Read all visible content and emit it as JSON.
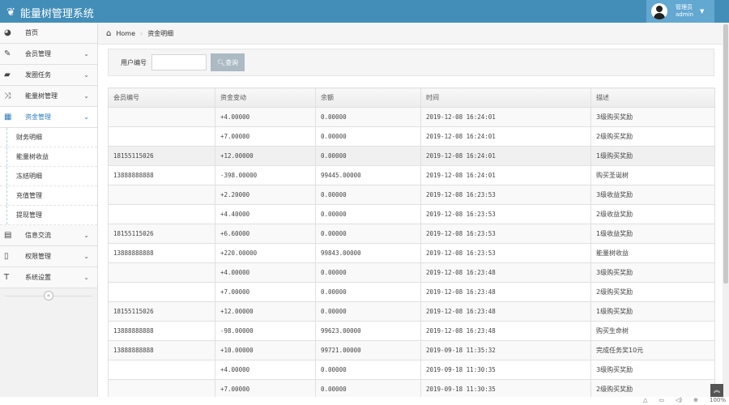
{
  "app": {
    "title": "能量树管理系统",
    "brand_color": "#438eb9"
  },
  "user": {
    "role": "管理员",
    "name": "admin"
  },
  "sidebar": {
    "items": [
      {
        "label": "首页",
        "icon": "dashboard-icon"
      },
      {
        "label": "会员管理",
        "icon": "edit-icon"
      },
      {
        "label": "发圈任务",
        "icon": "book-icon"
      },
      {
        "label": "能量树管理",
        "icon": "shuffle-icon"
      },
      {
        "label": "资金管理",
        "icon": "calendar-icon",
        "active": true
      }
    ],
    "subitems": [
      "财务明细",
      "能量树收益",
      "冻结明细",
      "充值管理",
      "提现管理"
    ],
    "items2": [
      {
        "label": "信息交流",
        "icon": "list-icon"
      },
      {
        "label": "权限管理",
        "icon": "file-icon"
      },
      {
        "label": "系统设置",
        "icon": "text-icon"
      }
    ]
  },
  "breadcrumb": {
    "home": "Home",
    "current": "资金明细"
  },
  "search": {
    "label": "用户编号",
    "value": "",
    "button": "查询"
  },
  "table": {
    "headers": [
      "会员编号",
      "资金变动",
      "余额",
      "时间",
      "描述"
    ],
    "rows": [
      [
        "",
        "+4.00000",
        "0.00000",
        "2019-12-08 16:24:01",
        "3级购买奖励"
      ],
      [
        "",
        "+7.00000",
        "0.00000",
        "2019-12-08 16:24:01",
        "2级购买奖励"
      ],
      [
        "18155115026",
        "+12.00000",
        "0.00000",
        "2019-12-08 16:24:01",
        "1级购买奖励"
      ],
      [
        "13888888888",
        "-398.00000",
        "99445.00000",
        "2019-12-08 16:24:01",
        "购买圣诞树"
      ],
      [
        "",
        "+2.20000",
        "0.00000",
        "2019-12-08 16:23:53",
        "3级收益奖励"
      ],
      [
        "",
        "+4.40000",
        "0.00000",
        "2019-12-08 16:23:53",
        "2级收益奖励"
      ],
      [
        "18155115026",
        "+6.60000",
        "0.00000",
        "2019-12-08 16:23:53",
        "1级收益奖励"
      ],
      [
        "13888888888",
        "+220.00000",
        "99843.00000",
        "2019-12-08 16:23:53",
        "能量树收益"
      ],
      [
        "",
        "+4.00000",
        "0.00000",
        "2019-12-08 16:23:48",
        "3级购买奖励"
      ],
      [
        "",
        "+7.00000",
        "0.00000",
        "2019-12-08 16:23:48",
        "2级购买奖励"
      ],
      [
        "18155115026",
        "+12.00000",
        "0.00000",
        "2019-12-08 16:23:48",
        "1级购买奖励"
      ],
      [
        "13888888888",
        "-98.00000",
        "99623.00000",
        "2019-12-08 16:23:48",
        "购买生命树"
      ],
      [
        "13888888888",
        "+10.00000",
        "99721.00000",
        "2019-09-18 11:35:32",
        "完成任务奖10元"
      ],
      [
        "",
        "+4.00000",
        "0.00000",
        "2019-09-18 11:30:35",
        "3级购买奖励"
      ],
      [
        "",
        "+7.00000",
        "0.00000",
        "2019-09-18 11:30:35",
        "2级购买奖励"
      ]
    ],
    "highlighted_row": 2
  },
  "statusbar": {
    "zoom": "100%"
  }
}
